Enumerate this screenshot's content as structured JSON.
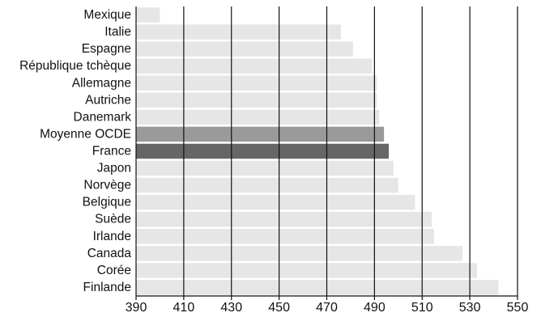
{
  "chart_data": {
    "type": "bar",
    "orientation": "horizontal",
    "title": "",
    "xlabel": "",
    "ylabel": "",
    "categories": [
      "Mexique",
      "Italie",
      "Espagne",
      "République tchèque",
      "Allemagne",
      "Autriche",
      "Danemark",
      "Moyenne OCDE",
      "France",
      "Japon",
      "Norvège",
      "Belgique",
      "Suède",
      "Irlande",
      "Canada",
      "Corée",
      "Finlande"
    ],
    "values": [
      400,
      476,
      481,
      489,
      491,
      491,
      492,
      494,
      496,
      498,
      500,
      507,
      514,
      515,
      527,
      533,
      542
    ],
    "highlight": {
      "Moyenne OCDE": "#9a9a9a",
      "France": "#666666"
    },
    "bar_color": "#e6e6e6",
    "gridline_color": "#111111",
    "xlim": [
      390,
      550
    ],
    "xticks": [
      390,
      410,
      430,
      450,
      470,
      490,
      510,
      530,
      550
    ],
    "grid": true,
    "legend": "none"
  }
}
